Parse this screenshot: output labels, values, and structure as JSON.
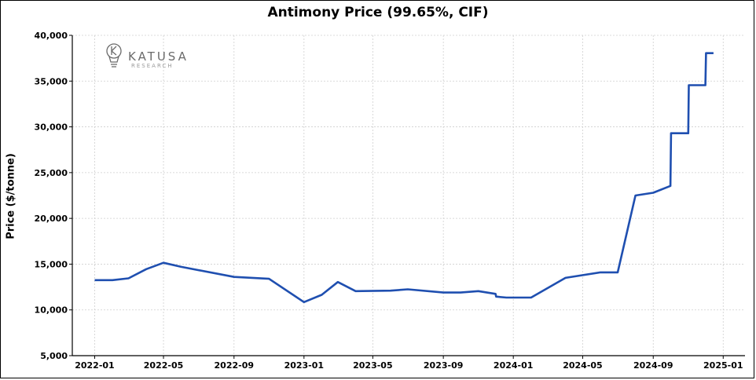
{
  "chart_data": {
    "type": "line",
    "title": "Antimony Price (99.65%, CIF)",
    "ylabel": "Price ($/tonne)",
    "xlabel": "",
    "ylim": [
      5000,
      40000
    ],
    "xlim": [
      "2021-11-23",
      "2025-02-08"
    ],
    "grid": true,
    "y_ticks": [
      5000,
      10000,
      15000,
      20000,
      25000,
      30000,
      35000,
      40000
    ],
    "y_tick_labels": [
      "5,000",
      "10,000",
      "15,000",
      "20,000",
      "25,000",
      "30,000",
      "35,000",
      "40,000"
    ],
    "x_ticks": [
      "2022-01-01",
      "2022-05-01",
      "2022-09-01",
      "2023-01-01",
      "2023-05-01",
      "2023-09-01",
      "2024-01-01",
      "2024-05-01",
      "2024-09-01",
      "2025-01-01"
    ],
    "x_tick_labels": [
      "2022-01",
      "2022-05",
      "2022-09",
      "2023-01",
      "2023-05",
      "2023-09",
      "2024-01",
      "2024-05",
      "2024-09",
      "2025-01"
    ],
    "series": [
      {
        "color": "#1f4fb0",
        "points": [
          [
            "2022-01-01",
            13250
          ],
          [
            "2022-02-01",
            13250
          ],
          [
            "2022-03-01",
            13450
          ],
          [
            "2022-04-01",
            14450
          ],
          [
            "2022-05-01",
            15150
          ],
          [
            "2022-06-01",
            14700
          ],
          [
            "2022-09-01",
            13600
          ],
          [
            "2022-11-01",
            13400
          ],
          [
            "2023-01-01",
            10850
          ],
          [
            "2023-02-01",
            11650
          ],
          [
            "2023-03-01",
            13050
          ],
          [
            "2023-04-01",
            12050
          ],
          [
            "2023-06-01",
            12100
          ],
          [
            "2023-07-01",
            12250
          ],
          [
            "2023-09-01",
            11900
          ],
          [
            "2023-10-01",
            11900
          ],
          [
            "2023-11-01",
            12050
          ],
          [
            "2023-12-01",
            11750
          ],
          [
            "2023-12-02",
            11450
          ],
          [
            "2023-12-20",
            11350
          ],
          [
            "2024-02-01",
            11350
          ],
          [
            "2024-04-01",
            13500
          ],
          [
            "2024-06-01",
            14100
          ],
          [
            "2024-07-01",
            14100
          ],
          [
            "2024-08-01",
            22500
          ],
          [
            "2024-09-01",
            22800
          ],
          [
            "2024-10-01",
            23550
          ],
          [
            "2024-10-02",
            29300
          ],
          [
            "2024-11-01",
            29300
          ],
          [
            "2024-11-02",
            34550
          ],
          [
            "2024-12-01",
            34550
          ],
          [
            "2024-12-02",
            38050
          ],
          [
            "2024-12-15",
            38050
          ]
        ]
      }
    ]
  },
  "logo": {
    "name": "KATUSA",
    "subtitle": "RESEARCH",
    "icon": "lightbulb-icon"
  }
}
